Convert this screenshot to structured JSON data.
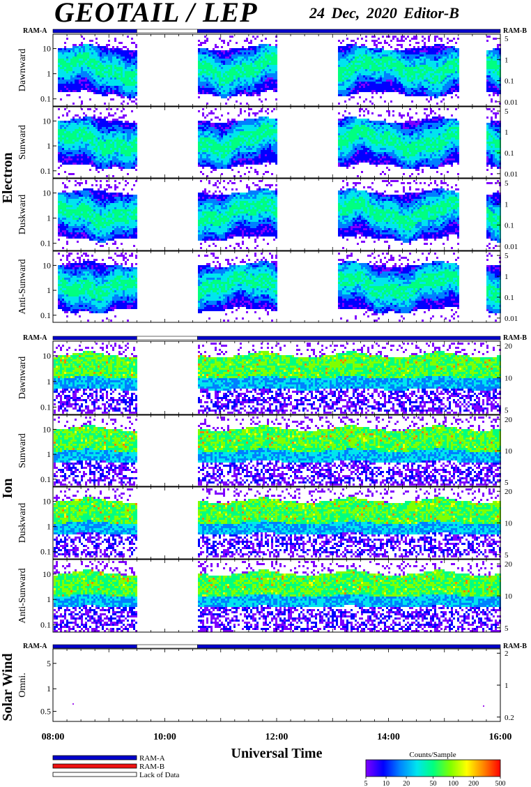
{
  "header": {
    "title": "GEOTAIL / LEP",
    "date_editor": "24 Dec, 2020   Editor-B"
  },
  "colors": {
    "ram_a": "#0000cc",
    "ram_b": "#ee1111",
    "lack": "#ffffff",
    "colorbar": [
      "#7f00ff",
      "#0000ff",
      "#0080ff",
      "#00e5ee",
      "#00ff80",
      "#80ff00",
      "#ffff00",
      "#ff8000",
      "#ff0000"
    ]
  },
  "chart_data": {
    "type": "heatmap",
    "time_range": [
      "08:00",
      "16:00"
    ],
    "xlabel": "Universal Time",
    "x_ticks": [
      "08:00",
      "10:00",
      "12:00",
      "14:00",
      "16:00"
    ],
    "ram_bar_label_left": "RAM-A",
    "ram_bar_label_right": "RAM-B",
    "ram_status": [
      {
        "start": "08:00",
        "end": "09:30",
        "mode": "RAM-A"
      },
      {
        "start": "09:30",
        "end": "10:35",
        "mode": "Lack of Data"
      },
      {
        "start": "10:35",
        "end": "16:00",
        "mode": "RAM-A"
      }
    ],
    "groups": [
      {
        "name": "Electron",
        "panels": [
          {
            "label": "Dawnward",
            "left_ticks": [
              "10",
              "1",
              "0.1"
            ],
            "right_ticks": [
              "5",
              "1",
              "0.1",
              "0.01"
            ]
          },
          {
            "label": "Sunward",
            "left_ticks": [
              "10",
              "1",
              "0.1"
            ],
            "right_ticks": [
              "5",
              "1",
              "0.1",
              "0.01"
            ]
          },
          {
            "label": "Duskward",
            "left_ticks": [
              "10",
              "1",
              "0.1"
            ],
            "right_ticks": [
              "5",
              "1",
              "0.1",
              "0.01"
            ]
          },
          {
            "label": "Anti-Sunward",
            "left_ticks": [
              "10",
              "1",
              "0.1"
            ],
            "right_ticks": [
              "5",
              "1",
              "0.1",
              "0.01"
            ]
          }
        ],
        "data_intervals": [
          [
            "08:05",
            "09:30"
          ],
          [
            "10:35",
            "12:00"
          ],
          [
            "13:05",
            "15:15"
          ],
          [
            "15:43",
            "16:00"
          ]
        ]
      },
      {
        "name": "Ion",
        "panels": [
          {
            "label": "Dawnward",
            "left_ticks": [
              "10",
              "1",
              "0.1"
            ],
            "right_ticks": [
              "20",
              "10",
              "5"
            ]
          },
          {
            "label": "Sunward",
            "left_ticks": [
              "10",
              "1",
              "0.1"
            ],
            "right_ticks": [
              "20",
              "10",
              "5"
            ]
          },
          {
            "label": "Duskward",
            "left_ticks": [
              "10",
              "1",
              "0.1"
            ],
            "right_ticks": [
              "20",
              "10",
              "5"
            ]
          },
          {
            "label": "Anti-Sunward",
            "left_ticks": [
              "10",
              "1",
              "0.1"
            ],
            "right_ticks": [
              "20",
              "10",
              "5"
            ]
          }
        ],
        "data_intervals": [
          [
            "08:00",
            "09:30"
          ],
          [
            "10:35",
            "16:00"
          ]
        ]
      },
      {
        "name": "Solar Wind",
        "panels": [
          {
            "label": "Omni.",
            "left_ticks": [
              "5",
              "1",
              "0.5"
            ],
            "right_ticks": [
              "2",
              "1",
              "0.2"
            ]
          }
        ],
        "data_intervals": []
      }
    ],
    "colorbar": {
      "title": "Counts/Sample",
      "ticks": [
        "5",
        "10",
        "20",
        "50",
        "100",
        "200",
        "500"
      ],
      "scale": "log"
    }
  },
  "legend": {
    "items": [
      {
        "label": "RAM-A"
      },
      {
        "label": "RAM-B"
      },
      {
        "label": "Lack of Data"
      }
    ]
  }
}
